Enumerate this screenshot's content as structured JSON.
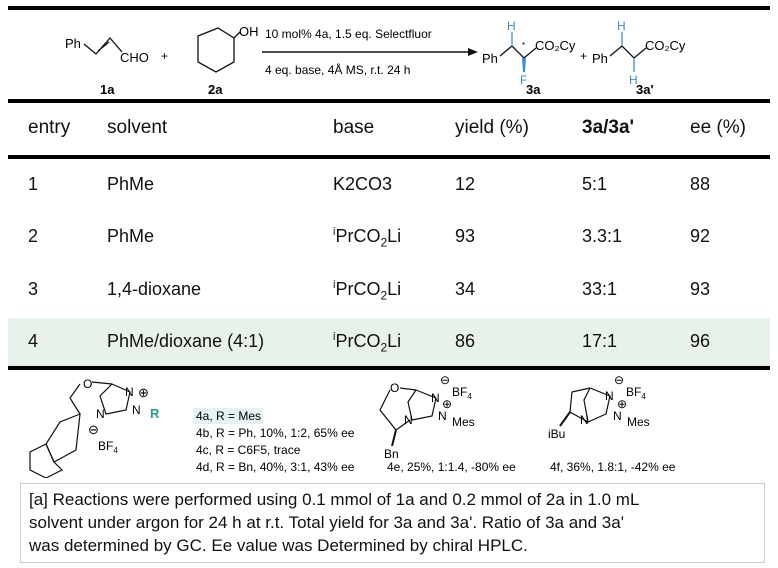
{
  "scheme": {
    "reactant1_label": "1a",
    "reactant2_label": "2a",
    "conditions_top": "10 mol% 4a, 1.5 eq. Selectfluor",
    "conditions_bottom": "4 eq. base, 4Å MS, r.t. 24 h",
    "product1_label": "3a",
    "product2_label": "3a'",
    "highlight_color": "#3a8fc9"
  },
  "table": {
    "headers": [
      "entry",
      "solvent",
      "base",
      "yield (%)",
      "3a/3a'",
      "ee (%)"
    ],
    "rows": [
      {
        "entry": "1",
        "solvent": "PhMe",
        "base": "K2CO3",
        "yield": "12",
        "ratio": "5:1",
        "ee": "88"
      },
      {
        "entry": "2",
        "solvent": "PhMe",
        "base": "iPrCO2Li",
        "yield": "93",
        "ratio": "3.3:1",
        "ee": "92"
      },
      {
        "entry": "3",
        "solvent": "1,4-dioxane",
        "base": "iPrCO2Li",
        "yield": "34",
        "ratio": "33:1",
        "ee": "93"
      },
      {
        "entry": "4",
        "solvent": "PhMe/dioxane (4:1)",
        "base": "iPrCO2Li",
        "yield": "86",
        "ratio": "17:1",
        "ee": "96"
      }
    ],
    "highlight_row_color": "#e8f2ea"
  },
  "catalysts": {
    "items": [
      "4a, R = Mes",
      "4b, R = Ph, 10%, 1:2, 65% ee",
      "4c, R = C6F5, trace",
      "4d, R = Bn, 40%, 3:1, 43% ee",
      "4e, 25%, 1:1.4, -80% ee",
      "4f, 36%, 1.8:1, -42% ee"
    ]
  },
  "footnote": {
    "line1": "[a] Reactions were performed using 0.1 mmol of 1a and 0.2 mmol of 2a in 1.0 mL",
    "line2": "solvent under argon for 24 h at r.t. Total yield for 3a and 3a'.  Ratio of 3a and 3a'",
    "line3": "was determined by GC. Ee value was Determined by chiral HPLC."
  }
}
